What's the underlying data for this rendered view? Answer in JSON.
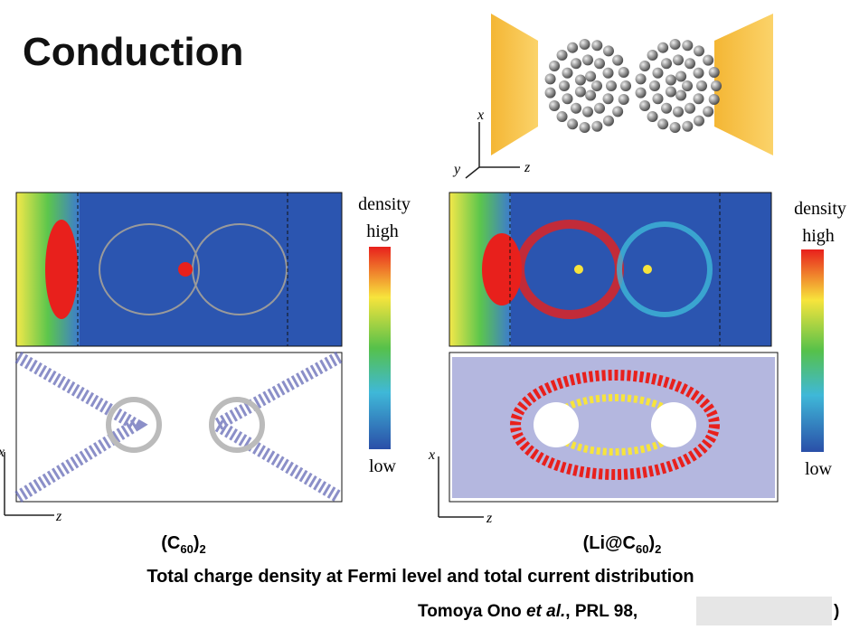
{
  "header": {
    "title": "Conduction"
  },
  "illustration": {
    "axis_labels": {
      "x": "x",
      "y": "y",
      "z": "z"
    }
  },
  "panels": [
    {
      "label_parts": [
        "(C",
        "60",
        ")",
        "2"
      ],
      "colorbar": {
        "title": "density",
        "high": "high",
        "low": "low"
      },
      "axis_labels": {
        "x": "x",
        "z": "z"
      }
    },
    {
      "label_parts": [
        "(Li@C",
        "60",
        ")",
        "2"
      ],
      "colorbar": {
        "title": "density",
        "high": "high",
        "low": "low"
      },
      "axis_labels": {
        "x": "x",
        "z": "z"
      }
    }
  ],
  "caption": "Total charge density at Fermi level and total current distribution",
  "citation": {
    "author": "Tomoya Ono ",
    "etal": "et al.",
    "source": ", PRL 98, ",
    "end": ")"
  }
}
